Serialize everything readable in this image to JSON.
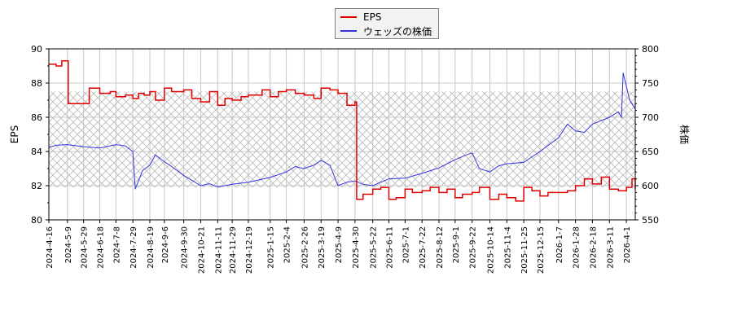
{
  "legend": {
    "items": [
      {
        "label": "EPS",
        "color": "#e00000"
      },
      {
        "label": "ウェッズの株価",
        "color": "#3333dd"
      }
    ]
  },
  "axes": {
    "left_label": "EPS",
    "right_label": "株価",
    "left_ticks": [
      "80",
      "82",
      "84",
      "86",
      "88",
      "90"
    ],
    "right_ticks": [
      "550",
      "600",
      "650",
      "700",
      "750",
      "800"
    ]
  },
  "chart_data": {
    "type": "line",
    "title": "",
    "xlabel": "",
    "ylabel": "EPS",
    "y2label": "株価",
    "ylim": [
      80,
      90
    ],
    "y2lim": [
      550,
      800
    ],
    "grid": true,
    "legend_position": "top-center",
    "x_tick_labels": [
      "2024-4-16",
      "2024-5-9",
      "2024-5-29",
      "2024-6-18",
      "2024-7-8",
      "2024-7-29",
      "2024-8-19",
      "2024-9-6",
      "2024-9-30",
      "2024-10-21",
      "2024-11-11",
      "2024-11-29",
      "2024-12-19",
      "2025-1-15",
      "2025-2-4",
      "2025-2-26",
      "2025-3-19",
      "2025-4-9",
      "2025-4-30",
      "2025-5-22",
      "2025-6-11",
      "2025-7-1",
      "2025-7-22",
      "2025-8-12",
      "2025-9-1",
      "2025-9-22",
      "2025-10-14",
      "2025-11-4",
      "2025-11-25",
      "2025-12-15",
      "2026-1-7",
      "2026-1-28",
      "2026-2-18",
      "2026-3-11",
      "2026-4-1"
    ],
    "shaded_band_eps": [
      81.9,
      87.5
    ],
    "series": [
      {
        "name": "EPS",
        "axis": "left",
        "color": "#e00000",
        "x": [
          "2024-4-16",
          "2024-4-25",
          "2024-5-2",
          "2024-5-9",
          "2024-5-10",
          "2024-5-29",
          "2024-6-5",
          "2024-6-18",
          "2024-7-1",
          "2024-7-8",
          "2024-7-20",
          "2024-7-29",
          "2024-8-5",
          "2024-8-12",
          "2024-8-19",
          "2024-8-26",
          "2024-9-6",
          "2024-9-15",
          "2024-9-30",
          "2024-10-10",
          "2024-10-21",
          "2024-11-1",
          "2024-11-11",
          "2024-11-20",
          "2024-11-29",
          "2024-12-10",
          "2024-12-19",
          "2025-1-5",
          "2025-1-15",
          "2025-1-25",
          "2025-2-4",
          "2025-2-15",
          "2025-2-26",
          "2025-3-10",
          "2025-3-19",
          "2025-3-30",
          "2025-4-9",
          "2025-4-20",
          "2025-4-30",
          "2025-5-2",
          "2025-5-10",
          "2025-5-22",
          "2025-6-1",
          "2025-6-11",
          "2025-6-20",
          "2025-7-1",
          "2025-7-10",
          "2025-7-22",
          "2025-8-1",
          "2025-8-12",
          "2025-8-22",
          "2025-9-1",
          "2025-9-10",
          "2025-9-22",
          "2025-10-1",
          "2025-10-14",
          "2025-10-25",
          "2025-11-4",
          "2025-11-15",
          "2025-11-25",
          "2025-12-5",
          "2025-12-15",
          "2025-12-25",
          "2026-1-7",
          "2026-1-18",
          "2026-1-28",
          "2026-2-8",
          "2026-2-18",
          "2026-3-1",
          "2026-3-11",
          "2026-3-22",
          "2026-4-1",
          "2026-4-8",
          "2026-4-12"
        ],
        "values": [
          89.1,
          89.0,
          89.3,
          89.3,
          86.8,
          86.8,
          87.7,
          87.4,
          87.5,
          87.2,
          87.3,
          87.1,
          87.4,
          87.3,
          87.5,
          87.0,
          87.7,
          87.5,
          87.6,
          87.1,
          86.9,
          87.5,
          86.7,
          87.1,
          87.0,
          87.2,
          87.3,
          87.6,
          87.2,
          87.5,
          87.6,
          87.4,
          87.3,
          87.1,
          87.7,
          87.6,
          87.4,
          86.7,
          86.9,
          81.2,
          81.5,
          81.8,
          81.9,
          81.2,
          81.3,
          81.8,
          81.6,
          81.7,
          81.9,
          81.6,
          81.8,
          81.3,
          81.5,
          81.6,
          81.9,
          81.2,
          81.5,
          81.3,
          81.1,
          81.9,
          81.7,
          81.4,
          81.6,
          81.6,
          81.7,
          82.0,
          82.4,
          82.1,
          82.5,
          81.8,
          81.7,
          81.9,
          82.4,
          81.8
        ]
      },
      {
        "name": "ウェッズの株価",
        "axis": "right",
        "color": "#3333dd",
        "x": [
          "2024-4-16",
          "2024-4-25",
          "2024-5-9",
          "2024-5-29",
          "2024-6-18",
          "2024-7-8",
          "2024-7-20",
          "2024-7-29",
          "2024-8-1",
          "2024-8-10",
          "2024-8-19",
          "2024-8-26",
          "2024-9-6",
          "2024-9-15",
          "2024-9-30",
          "2024-10-10",
          "2024-10-21",
          "2024-11-1",
          "2024-11-11",
          "2024-11-29",
          "2024-12-19",
          "2025-1-15",
          "2025-2-4",
          "2025-2-15",
          "2025-2-26",
          "2025-3-10",
          "2025-3-19",
          "2025-3-30",
          "2025-4-9",
          "2025-4-20",
          "2025-4-30",
          "2025-5-10",
          "2025-5-22",
          "2025-6-11",
          "2025-7-1",
          "2025-7-22",
          "2025-8-12",
          "2025-9-1",
          "2025-9-15",
          "2025-9-22",
          "2025-10-1",
          "2025-10-14",
          "2025-10-25",
          "2025-11-4",
          "2025-11-25",
          "2025-12-15",
          "2026-1-7",
          "2026-1-18",
          "2026-1-28",
          "2026-2-8",
          "2026-2-18",
          "2026-3-11",
          "2026-3-22",
          "2026-3-26",
          "2026-3-28",
          "2026-4-1",
          "2026-4-5",
          "2026-4-12"
        ],
        "values": [
          656,
          659,
          660,
          657,
          655,
          660,
          658,
          650,
          595,
          622,
          630,
          645,
          635,
          628,
          615,
          608,
          600,
          603,
          598,
          602,
          605,
          612,
          620,
          628,
          625,
          630,
          637,
          630,
          600,
          605,
          607,
          602,
          600,
          610,
          611,
          618,
          626,
          638,
          645,
          648,
          625,
          620,
          629,
          632,
          634,
          650,
          670,
          690,
          680,
          678,
          690,
          700,
          708,
          700,
          765,
          745,
          725,
          712
        ]
      }
    ]
  }
}
